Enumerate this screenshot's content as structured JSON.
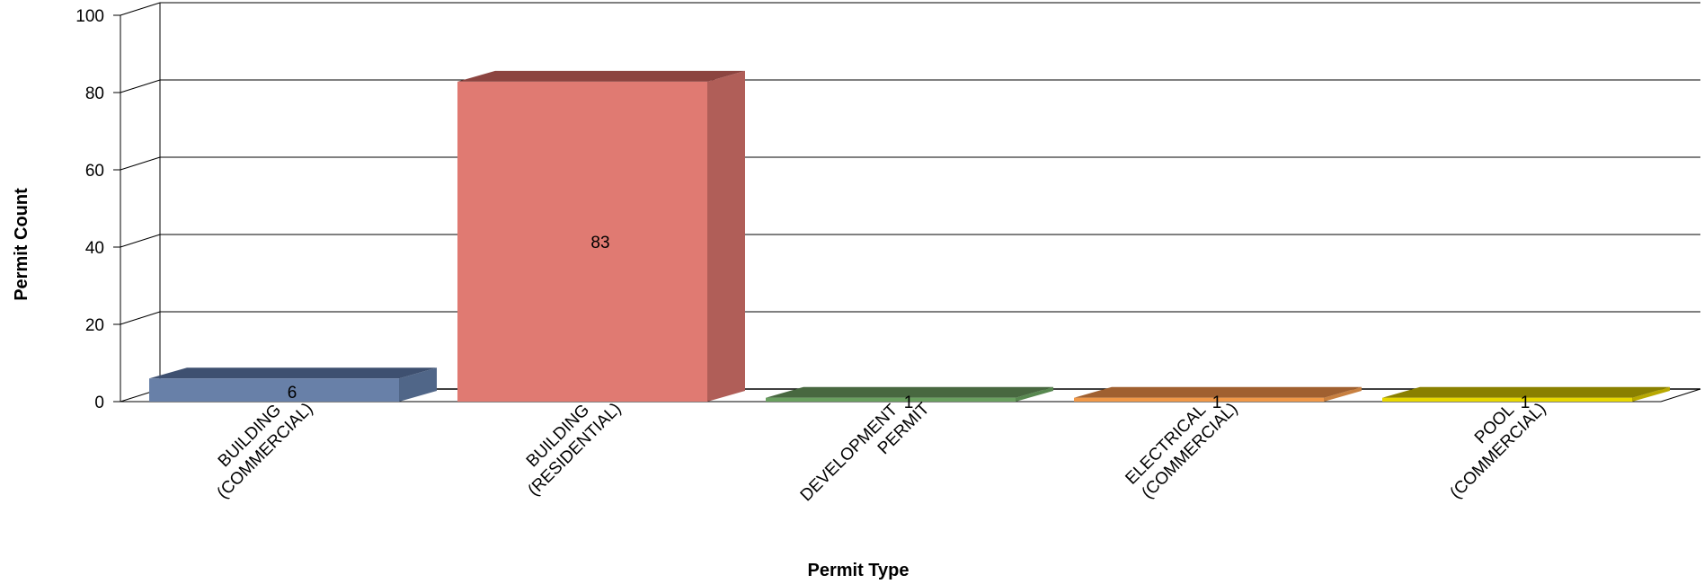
{
  "chart_data": {
    "type": "bar",
    "categories": [
      [
        "BUILDING",
        "(COMMERCIAL)"
      ],
      [
        "BUILDING",
        "(RESIDENTIAL)"
      ],
      [
        "DEVELOPMENT",
        "PERMIT"
      ],
      [
        "ELECTRICAL",
        "(COMMERCIAL)"
      ],
      [
        "POOL",
        "(COMMERCIAL)"
      ]
    ],
    "values": [
      6,
      83,
      1,
      1,
      1
    ],
    "data_labels": [
      "6",
      "83",
      "1",
      "1",
      "1"
    ],
    "colors": [
      {
        "front": "#6880a8",
        "top": "#3e5070",
        "side": "#506688"
      },
      {
        "front": "#e07a72",
        "top": "#8c4440",
        "side": "#b05e58"
      },
      {
        "front": "#6aa060",
        "top": "#486840",
        "side": "#588850"
      },
      {
        "front": "#f09848",
        "top": "#a06030",
        "side": "#c88040"
      },
      {
        "front": "#e8d800",
        "top": "#8a8000",
        "side": "#b8a800"
      }
    ],
    "xlabel": "Permit Type",
    "ylabel": "Permit Count",
    "ylim": [
      0,
      100
    ],
    "yticks": [
      "0",
      "20",
      "40",
      "60",
      "80",
      "100"
    ],
    "grid": true,
    "style": "3d"
  }
}
